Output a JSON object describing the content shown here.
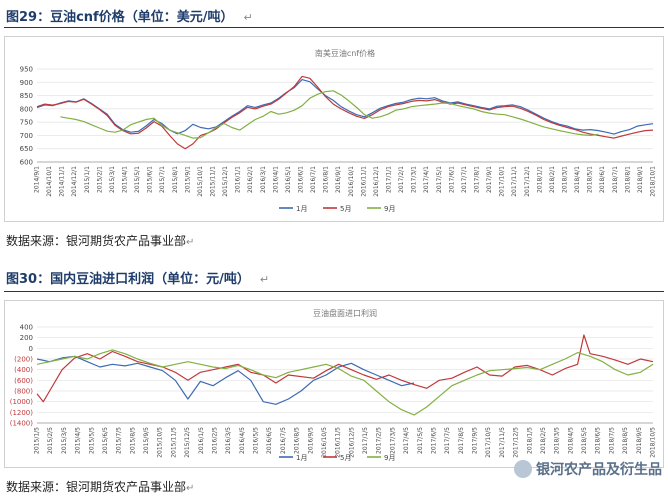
{
  "figure1": {
    "heading": "图29：豆油cnf价格（单位：美元/吨）",
    "mark": "↵",
    "source": "数据来源：银河期货农产品事业部",
    "source_mark": "↵"
  },
  "figure2": {
    "heading": "图30：国内豆油进口利润（单位：元/吨）",
    "mark": "↵",
    "source": "数据来源：银河期货农产品事业部",
    "source_mark": "↵"
  },
  "watermark": {
    "text": "银河农产品及衍生品"
  },
  "chart_data": [
    {
      "type": "line",
      "title": "南美豆油cnf价格",
      "ylim": [
        600,
        950
      ],
      "yticks": [
        600,
        650,
        700,
        750,
        800,
        850,
        900,
        950
      ],
      "grid": true,
      "legend_position": "bottom",
      "x_tick_labels": [
        "2014/9/1",
        "2014/10/1",
        "2014/11/1",
        "2014/12/1",
        "2015/1/1",
        "2015/2/1",
        "2015/3/1",
        "2015/4/1",
        "2015/5/1",
        "2015/6/1",
        "2015/7/1",
        "2015/8/1",
        "2015/9/1",
        "2015/10/1",
        "2015/11/1",
        "2015/12/1",
        "2016/1/1",
        "2016/2/1",
        "2016/3/1",
        "2016/4/1",
        "2016/5/1",
        "2016/6/1",
        "2016/7/1",
        "2016/8/1",
        "2016/9/1",
        "2016/10/1",
        "2016/11/1",
        "2016/12/1",
        "2017/1/1",
        "2017/2/1",
        "2017/3/1",
        "2017/4/1",
        "2017/5/1",
        "2017/6/1",
        "2017/7/1",
        "2017/8/1",
        "2017/9/1",
        "2017/10/1",
        "2017/11/1",
        "2017/12/1",
        "2018/1/1",
        "2018/2/1",
        "2018/3/1",
        "2018/4/1",
        "2018/5/1",
        "2018/6/1",
        "2018/7/1",
        "2018/8/1",
        "2018/9/1",
        "2018/10/1"
      ],
      "series": [
        {
          "name": "1月",
          "color": "#3d6bb3",
          "start": 0,
          "values": [
            805,
            815,
            812,
            822,
            830,
            826,
            838,
            820,
            800,
            780,
            742,
            722,
            712,
            715,
            736,
            760,
            745,
            720,
            706,
            718,
            742,
            730,
            725,
            732,
            752,
            772,
            790,
            812,
            805,
            815,
            822,
            840,
            862,
            880,
            910,
            902,
            875,
            850,
            832,
            808,
            792,
            778,
            770,
            785,
            802,
            812,
            820,
            825,
            835,
            840,
            838,
            842,
            830,
            822,
            826,
            818,
            812,
            805,
            800,
            810,
            812,
            815,
            808,
            795,
            780,
            765,
            752,
            742,
            735,
            725,
            720,
            722,
            718,
            712,
            705,
            715,
            722,
            735,
            740,
            744
          ]
        },
        {
          "name": "5月",
          "color": "#c0393b",
          "start": 0,
          "values": [
            808,
            818,
            814,
            820,
            828,
            825,
            836,
            818,
            798,
            775,
            738,
            718,
            706,
            708,
            728,
            752,
            735,
            700,
            668,
            650,
            668,
            700,
            710,
            725,
            748,
            768,
            785,
            806,
            800,
            810,
            818,
            836,
            860,
            884,
            922,
            915,
            882,
            846,
            818,
            800,
            785,
            772,
            764,
            778,
            796,
            808,
            815,
            820,
            828,
            832,
            830,
            835,
            825,
            818,
            822,
            815,
            808,
            802,
            796,
            805,
            808,
            810,
            802,
            790,
            776,
            760,
            748,
            738,
            730,
            722,
            712,
            705,
            700,
            695,
            690,
            698,
            705,
            712,
            718,
            720
          ]
        },
        {
          "name": "9月",
          "color": "#82b043",
          "start": 3,
          "values": [
            770,
            765,
            760,
            752,
            740,
            728,
            716,
            712,
            720,
            740,
            750,
            760,
            765,
            738,
            720,
            710,
            700,
            690,
            692,
            710,
            730,
            745,
            730,
            720,
            740,
            760,
            772,
            790,
            780,
            785,
            795,
            812,
            840,
            855,
            865,
            868,
            852,
            830,
            805,
            778,
            765,
            770,
            780,
            795,
            800,
            808,
            812,
            815,
            818,
            822,
            820,
            812,
            806,
            800,
            790,
            784,
            780,
            778,
            770,
            762,
            752,
            742,
            732,
            725,
            718,
            712,
            706,
            702,
            700,
            704
          ]
        }
      ]
    },
    {
      "type": "line",
      "title": "豆油盘面进口利润",
      "ylim": [
        -1400,
        400
      ],
      "yticks": [
        400,
        200,
        0,
        -200,
        -400,
        -600,
        -800,
        -1000,
        -1200,
        -1400
      ],
      "ytick_labels": [
        "400",
        "200",
        "0",
        "(200)",
        "(400)",
        "(600)",
        "(800)",
        "(1000)",
        "(1200)",
        "(1400)"
      ],
      "grid": true,
      "legend_position": "bottom",
      "x_tick_labels": [
        "2015/1/5",
        "2015/2/5",
        "2015/3/5",
        "2015/4/5",
        "2015/5/5",
        "2015/6/5",
        "2015/7/5",
        "2015/8/5",
        "2015/9/5",
        "2015/10/5",
        "2015/11/5",
        "2015/12/5",
        "2016/1/5",
        "2016/2/5",
        "2016/3/5",
        "2016/4/5",
        "2016/5/5",
        "2016/6/5",
        "2016/7/5",
        "2016/8/5",
        "2016/9/5",
        "2016/10/5",
        "2016/11/5",
        "2016/12/5",
        "2017/1/5",
        "2017/2/5",
        "2017/3/5",
        "2017/4/5",
        "2017/5/5",
        "2017/6/5",
        "2017/7/5",
        "2017/8/5",
        "2017/9/5",
        "2017/10/5",
        "2017/11/5",
        "2017/12/5",
        "2018/1/5",
        "2018/2/5",
        "2018/3/5",
        "2018/4/5",
        "2018/5/5",
        "2018/6/5",
        "2018/7/5",
        "2018/8/5",
        "2018/9/5",
        "2018/10/5"
      ],
      "series": [
        {
          "name": "1月",
          "color": "#3d6bb3",
          "points": [
            [
              0,
              -200
            ],
            [
              2,
              -250
            ],
            [
              4,
              -180
            ],
            [
              6,
              -150
            ],
            [
              8,
              -250
            ],
            [
              10,
              -350
            ],
            [
              12,
              -300
            ],
            [
              14,
              -330
            ],
            [
              16,
              -280
            ],
            [
              18,
              -350
            ],
            [
              20,
              -420
            ],
            [
              22,
              -600
            ],
            [
              24,
              -950
            ],
            [
              26,
              -620
            ],
            [
              28,
              -700
            ],
            [
              30,
              -550
            ],
            [
              32,
              -420
            ],
            [
              34,
              -600
            ],
            [
              36,
              -1000
            ],
            [
              38,
              -1050
            ],
            [
              40,
              -950
            ],
            [
              42,
              -800
            ],
            [
              44,
              -600
            ],
            [
              46,
              -500
            ],
            [
              48,
              -350
            ],
            [
              50,
              -280
            ],
            [
              52,
              -400
            ],
            [
              54,
              -500
            ],
            [
              56,
              -600
            ],
            [
              58,
              -700
            ],
            [
              60,
              -650
            ]
          ]
        },
        {
          "name": "5月",
          "color": "#c0393b",
          "points": [
            [
              0,
              -850
            ],
            [
              1,
              -1000
            ],
            [
              2,
              -800
            ],
            [
              4,
              -400
            ],
            [
              6,
              -180
            ],
            [
              8,
              -100
            ],
            [
              10,
              -200
            ],
            [
              12,
              -60
            ],
            [
              14,
              -150
            ],
            [
              16,
              -250
            ],
            [
              18,
              -300
            ],
            [
              20,
              -350
            ],
            [
              22,
              -450
            ],
            [
              24,
              -600
            ],
            [
              26,
              -450
            ],
            [
              28,
              -400
            ],
            [
              30,
              -350
            ],
            [
              32,
              -300
            ],
            [
              34,
              -450
            ],
            [
              36,
              -500
            ],
            [
              38,
              -650
            ],
            [
              40,
              -500
            ],
            [
              44,
              -560
            ],
            [
              46,
              -420
            ],
            [
              48,
              -300
            ],
            [
              50,
              -400
            ],
            [
              52,
              -500
            ],
            [
              54,
              -580
            ],
            [
              56,
              -500
            ],
            [
              58,
              -600
            ],
            [
              60,
              -680
            ],
            [
              62,
              -750
            ],
            [
              64,
              -600
            ],
            [
              66,
              -560
            ],
            [
              68,
              -450
            ],
            [
              70,
              -350
            ],
            [
              72,
              -500
            ],
            [
              74,
              -520
            ],
            [
              76,
              -350
            ],
            [
              78,
              -320
            ],
            [
              80,
              -400
            ],
            [
              82,
              -500
            ],
            [
              84,
              -380
            ],
            [
              86,
              -300
            ],
            [
              87,
              250
            ],
            [
              88,
              -100
            ],
            [
              90,
              -150
            ],
            [
              92,
              -220
            ],
            [
              94,
              -300
            ],
            [
              96,
              -200
            ],
            [
              98,
              -250
            ]
          ]
        },
        {
          "name": "9月",
          "color": "#82b043",
          "points": [
            [
              0,
              -300
            ],
            [
              2,
              -250
            ],
            [
              4,
              -200
            ],
            [
              6,
              -150
            ],
            [
              8,
              -200
            ],
            [
              10,
              -100
            ],
            [
              12,
              -30
            ],
            [
              14,
              -100
            ],
            [
              16,
              -200
            ],
            [
              18,
              -280
            ],
            [
              20,
              -350
            ],
            [
              22,
              -300
            ],
            [
              24,
              -250
            ],
            [
              26,
              -300
            ],
            [
              28,
              -350
            ],
            [
              30,
              -380
            ],
            [
              32,
              -320
            ],
            [
              34,
              -400
            ],
            [
              36,
              -500
            ],
            [
              38,
              -550
            ],
            [
              40,
              -450
            ],
            [
              42,
              -400
            ],
            [
              44,
              -350
            ],
            [
              46,
              -300
            ],
            [
              48,
              -380
            ],
            [
              50,
              -520
            ],
            [
              52,
              -600
            ],
            [
              54,
              -800
            ],
            [
              56,
              -1000
            ],
            [
              58,
              -1150
            ],
            [
              60,
              -1250
            ],
            [
              62,
              -1100
            ],
            [
              64,
              -900
            ],
            [
              66,
              -700
            ],
            [
              68,
              -600
            ],
            [
              70,
              -500
            ],
            [
              72,
              -420
            ],
            [
              74,
              -400
            ],
            [
              76,
              -380
            ],
            [
              78,
              -360
            ],
            [
              80,
              -400
            ],
            [
              82,
              -300
            ],
            [
              84,
              -200
            ],
            [
              86,
              -80
            ],
            [
              88,
              -150
            ],
            [
              90,
              -250
            ],
            [
              92,
              -400
            ],
            [
              94,
              -500
            ],
            [
              96,
              -450
            ],
            [
              98,
              -300
            ]
          ]
        }
      ]
    }
  ]
}
